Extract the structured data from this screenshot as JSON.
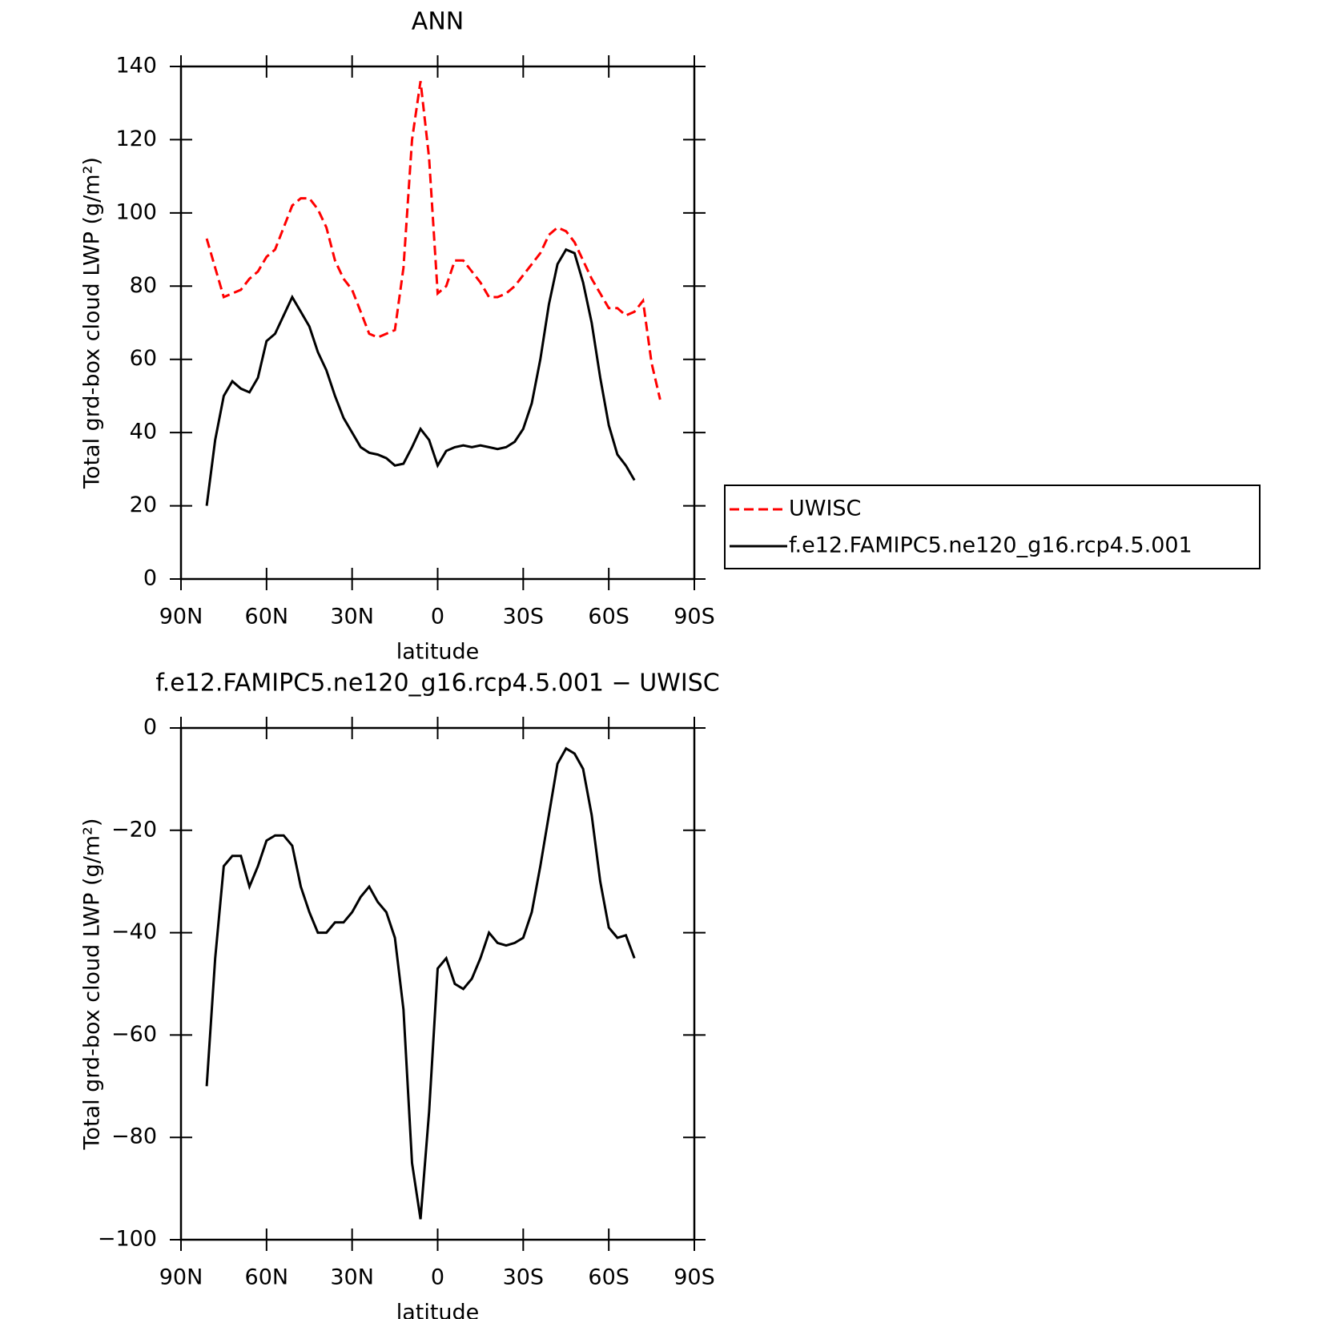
{
  "chart_data": [
    {
      "type": "line",
      "title": "ANN",
      "xlabel": "latitude",
      "ylabel": "Total grd-box cloud LWP (g/m²)",
      "x": [
        81,
        78,
        75,
        72,
        69,
        66,
        63,
        60,
        57,
        54,
        51,
        48,
        45,
        42,
        39,
        36,
        33,
        30,
        27,
        24,
        21,
        18,
        15,
        12,
        9,
        6,
        3,
        0,
        -3,
        -6,
        -9,
        -12,
        -15,
        -18,
        -21,
        -24,
        -27,
        -30,
        -33,
        -36,
        -39,
        -42,
        -45,
        -48,
        -51,
        -54,
        -57,
        -60,
        -63,
        -66,
        -69,
        -72,
        -75,
        -78
      ],
      "xlim": [
        90,
        -90
      ],
      "xticks": [
        {
          "value": 90,
          "label": "90N"
        },
        {
          "value": 60,
          "label": "60N"
        },
        {
          "value": 30,
          "label": "30N"
        },
        0,
        {
          "value": -30,
          "label": "30S"
        },
        {
          "value": -60,
          "label": "60S"
        },
        {
          "value": -90,
          "label": "90S"
        }
      ],
      "ylim": [
        0,
        140
      ],
      "yticks": [
        0,
        20,
        40,
        60,
        80,
        100,
        120,
        140
      ],
      "legend": true,
      "series": [
        {
          "name": "UWISC",
          "color": "#ff0000",
          "style": "dashed",
          "values": [
            93,
            85,
            77,
            78,
            79,
            82,
            84,
            88,
            90,
            96,
            102,
            104,
            104,
            101,
            96,
            87,
            82,
            79,
            73,
            67,
            66,
            67,
            68,
            85,
            120,
            136,
            115,
            78,
            80,
            87,
            87,
            84,
            81,
            77,
            77,
            78,
            80,
            83,
            86,
            89,
            94,
            96,
            95,
            92,
            87,
            82,
            78,
            74,
            74,
            72,
            73,
            76,
            59,
            49
          ]
        },
        {
          "name": "f.e12.FAMIPC5.ne120_g16.rcp4.5.001",
          "color": "#000000",
          "style": "solid",
          "values": [
            20,
            38,
            50,
            54,
            52,
            51,
            55,
            65,
            67,
            72,
            77,
            73,
            69,
            62,
            57,
            50,
            44,
            40,
            36,
            34.5,
            34,
            33,
            31,
            31.5,
            36,
            41,
            38,
            31,
            35,
            36,
            36.5,
            36,
            36.5,
            36,
            35.5,
            36,
            37.5,
            41,
            48,
            60,
            75,
            86,
            90,
            89,
            81,
            70,
            55,
            42,
            34,
            31,
            27,
            null,
            null,
            null
          ]
        }
      ]
    },
    {
      "type": "line",
      "title": "f.e12.FAMIPC5.ne120_g16.rcp4.5.001 − UWISC",
      "xlabel": "latitude",
      "ylabel": "Total grd-box cloud LWP (g/m²)",
      "x": [
        81,
        78,
        75,
        72,
        69,
        66,
        63,
        60,
        57,
        54,
        51,
        48,
        45,
        42,
        39,
        36,
        33,
        30,
        27,
        24,
        21,
        18,
        15,
        12,
        9,
        6,
        3,
        0,
        -3,
        -6,
        -9,
        -12,
        -15,
        -18,
        -21,
        -24,
        -27,
        -30,
        -33,
        -36,
        -39,
        -42,
        -45,
        -48,
        -51,
        -54,
        -57,
        -60,
        -63,
        -66,
        -69,
        -72,
        -75,
        -78
      ],
      "xlim": [
        90,
        -90
      ],
      "xticks": [
        {
          "value": 90,
          "label": "90N"
        },
        {
          "value": 60,
          "label": "60N"
        },
        {
          "value": 30,
          "label": "30N"
        },
        0,
        {
          "value": -30,
          "label": "30S"
        },
        {
          "value": -60,
          "label": "60S"
        },
        {
          "value": -90,
          "label": "90S"
        }
      ],
      "ylim": [
        -100,
        0
      ],
      "yticks": [
        {
          "value": -100,
          "label": "−100"
        },
        {
          "value": -80,
          "label": "−80"
        },
        {
          "value": -60,
          "label": "−60"
        },
        {
          "value": -40,
          "label": "−40"
        },
        {
          "value": -20,
          "label": "−20"
        },
        0
      ],
      "legend": false,
      "series": [
        {
          "color": "#000000",
          "style": "solid",
          "values": [
            -70,
            -45,
            -27,
            -25,
            -25,
            -31,
            -27,
            -22,
            -21,
            -21,
            -23,
            -31,
            -36,
            -40,
            -40,
            -38,
            -38,
            -36,
            -33,
            -31,
            -34,
            -36,
            -41,
            -55,
            -85,
            -96,
            -75,
            -47,
            -45,
            -50,
            -51,
            -49,
            -45,
            -40,
            -42,
            -42.5,
            -42,
            -41,
            -36,
            -27,
            -17,
            -7,
            -4,
            -5,
            -8,
            -17,
            -30,
            -39,
            -41,
            -40.5,
            -45,
            null,
            null,
            null
          ]
        }
      ]
    }
  ]
}
